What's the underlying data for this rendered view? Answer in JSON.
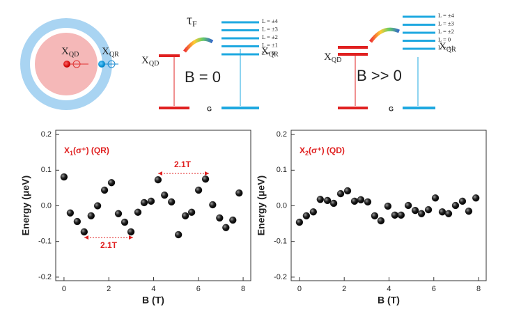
{
  "diagrams": {
    "ring": {
      "qd": {
        "main": "X",
        "sub": "QD"
      },
      "qr": {
        "main": "X",
        "sub": "QR"
      }
    },
    "zero_field": {
      "tau": {
        "main": "τ",
        "sub": "F"
      },
      "qd": {
        "main": "X",
        "sub": "QD"
      },
      "qr": {
        "main": "X",
        "sub": "QR"
      },
      "field": "B = 0",
      "ground": "G",
      "levels": [
        "L = ±4",
        "L = ±3",
        "L = ±2",
        "L = ±1",
        "L = 0"
      ]
    },
    "high_field": {
      "qd": {
        "main": "X",
        "sub": "QD"
      },
      "qr": {
        "main": "X",
        "sub": "QR"
      },
      "field": "B >> 0",
      "ground": "G",
      "levels": [
        "L = ±4",
        "L = ±3",
        "L = ±2",
        "L = 0",
        "L = ±1"
      ]
    }
  },
  "chart_data": [
    {
      "type": "scatter",
      "xlabel": "B (T)",
      "ylabel": "Energy (μeV)",
      "label": {
        "main": "X",
        "sub": "1",
        "rest": "(σ⁺) (QR)"
      },
      "annotations": [
        "2.1T",
        "2.1T"
      ],
      "color": "#111111",
      "x": [
        0,
        0.28,
        0.59,
        0.9,
        1.21,
        1.5,
        1.81,
        2.12,
        2.43,
        2.71,
        2.99,
        3.3,
        3.58,
        3.89,
        4.2,
        4.49,
        4.8,
        5.11,
        5.42,
        5.7,
        6.01,
        6.32,
        6.64,
        6.95,
        7.23,
        7.54,
        7.82
      ],
      "values": [
        0.081,
        -0.02,
        -0.044,
        -0.073,
        -0.028,
        0.0,
        0.044,
        0.065,
        -0.022,
        -0.046,
        -0.073,
        -0.018,
        0.009,
        0.013,
        0.073,
        0.03,
        0.011,
        -0.081,
        -0.028,
        -0.018,
        0.044,
        0.075,
        0.003,
        -0.034,
        -0.061,
        -0.04,
        0.036
      ],
      "xlim": [
        -0.37,
        8.34
      ],
      "ylim": [
        -0.21,
        0.212
      ],
      "xticks": [
        0,
        2,
        4,
        6,
        8
      ],
      "yticks": [
        -0.2,
        -0.1,
        {
          "value": 0,
          "label": "0.0"
        },
        0.1,
        0.2
      ]
    },
    {
      "type": "scatter",
      "xlabel": "B (T)",
      "ylabel": "Energy (μeV)",
      "label": {
        "main": "X",
        "sub": "2",
        "rest": "(σ⁺) (QD)"
      },
      "color": "#111111",
      "x": [
        0,
        0.31,
        0.62,
        0.93,
        1.25,
        1.53,
        1.84,
        2.15,
        2.46,
        2.74,
        3.05,
        3.36,
        3.64,
        3.95,
        4.26,
        4.54,
        4.86,
        5.17,
        5.45,
        5.76,
        6.07,
        6.38,
        6.66,
        6.97,
        7.28,
        7.56,
        7.88
      ],
      "values": [
        -0.046,
        -0.028,
        -0.017,
        0.018,
        0.015,
        0.007,
        0.034,
        0.042,
        0.013,
        0.017,
        0.011,
        -0.028,
        -0.042,
        -0.001,
        -0.026,
        -0.026,
        0.001,
        -0.013,
        -0.022,
        -0.011,
        0.022,
        -0.017,
        -0.022,
        0.001,
        0.013,
        -0.015,
        0.022
      ],
      "xlim": [
        -0.37,
        8.34
      ],
      "ylim": [
        -0.21,
        0.212
      ],
      "xticks": [
        0,
        2,
        4,
        6,
        8
      ],
      "yticks": [
        -0.2,
        -0.1,
        {
          "value": 0,
          "label": "0.0"
        },
        0.1,
        0.2
      ]
    }
  ]
}
